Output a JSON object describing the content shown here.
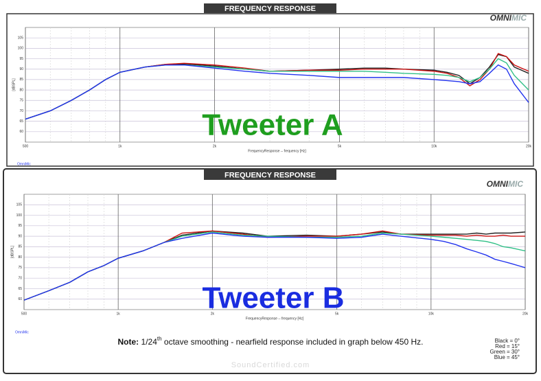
{
  "chart_data": [
    {
      "type": "line",
      "title": "FREQUENCY RESPONSE",
      "brand": {
        "main": "OMNI",
        "accent": "MIC"
      },
      "annotation": "Tweeter A",
      "annotation_color": "#1f9e1f",
      "source": "OmniMic",
      "x_label": "FrequencyResponse -- frequency [Hz]",
      "y_label": "[dBSPL]",
      "log_x": true,
      "grid": true,
      "xlim": [
        500,
        20000
      ],
      "ylim": [
        55,
        110
      ],
      "xticks": [
        500,
        {
          "value": 1000,
          "label": "1k"
        },
        {
          "value": 2000,
          "label": "2k"
        },
        {
          "value": 5000,
          "label": "5k"
        },
        {
          "value": 10000,
          "label": "10k"
        },
        {
          "value": 20000,
          "label": "20k"
        }
      ],
      "yticks": [
        60,
        65,
        70,
        75,
        80,
        85,
        90,
        95,
        100,
        105
      ],
      "x": [
        500,
        600,
        700,
        800,
        900,
        1000,
        1200,
        1400,
        1600,
        2000,
        2500,
        3000,
        4000,
        5000,
        6000,
        7000,
        8000,
        10000,
        11000,
        12000,
        13000,
        14000,
        15000,
        16000,
        17000,
        18000,
        20000
      ],
      "series": [
        {
          "color": "#222222",
          "values": [
            66,
            70,
            75,
            80,
            85,
            88.5,
            91,
            92.3,
            92.5,
            91.5,
            90,
            89,
            89.5,
            90,
            90.5,
            90.5,
            90,
            89.5,
            88.5,
            87,
            83,
            86,
            91,
            97,
            96,
            91,
            88
          ]
        },
        {
          "color": "#cc1111",
          "values": [
            66,
            70,
            75,
            80,
            85,
            88.5,
            91,
            92.3,
            92.8,
            92,
            90.5,
            89,
            89.5,
            89.5,
            90,
            90,
            90,
            89,
            88,
            86,
            82,
            85,
            90,
            97.5,
            96,
            92,
            89
          ]
        },
        {
          "color": "#2fbf86",
          "values": [
            66,
            70,
            75,
            80,
            85,
            88.5,
            91,
            92,
            92,
            91,
            90,
            89,
            89,
            89,
            89,
            88.5,
            88,
            87.5,
            87,
            86,
            84,
            86,
            90,
            95,
            93,
            87,
            80
          ]
        },
        {
          "color": "#2233ee",
          "values": [
            66,
            70,
            75,
            80,
            85,
            88.5,
            91,
            92,
            92,
            90.5,
            89,
            88,
            87,
            86,
            86,
            86,
            86,
            85,
            84.5,
            84,
            83,
            84,
            88,
            92,
            90,
            83,
            74
          ]
        }
      ]
    },
    {
      "type": "line",
      "title": "FREQUENCY RESPONSE",
      "brand": {
        "main": "OMNI",
        "accent": "MIC"
      },
      "annotation": "Tweeter B",
      "annotation_color": "#1a2de0",
      "source": "OmniMic",
      "x_label": "FrequencyResponse -- frequency [Hz]",
      "y_label": "[dBSPL]",
      "log_x": true,
      "grid": true,
      "xlim": [
        500,
        20000
      ],
      "ylim": [
        55,
        110
      ],
      "xticks": [
        500,
        {
          "value": 1000,
          "label": "1k"
        },
        {
          "value": 2000,
          "label": "2k"
        },
        {
          "value": 5000,
          "label": "5k"
        },
        {
          "value": 10000,
          "label": "10k"
        },
        {
          "value": 20000,
          "label": "20k"
        }
      ],
      "yticks": [
        60,
        65,
        70,
        75,
        80,
        85,
        90,
        95,
        100,
        105
      ],
      "x": [
        500,
        600,
        700,
        800,
        900,
        1000,
        1200,
        1400,
        1600,
        2000,
        2500,
        3000,
        4000,
        5000,
        6000,
        7000,
        8000,
        10000,
        11000,
        12000,
        13000,
        14000,
        15000,
        16000,
        17000,
        18000,
        20000
      ],
      "series": [
        {
          "name": "Black = 0°",
          "color": "#222222",
          "values": [
            59.5,
            64,
            68,
            73,
            76,
            79.5,
            83,
            87,
            90.5,
            92.5,
            91.5,
            90,
            90.5,
            90,
            91,
            92,
            91,
            91,
            91,
            91,
            91,
            91.5,
            91,
            91.5,
            91.5,
            91.5,
            92
          ]
        },
        {
          "name": "Red = 15°",
          "color": "#cc1111",
          "values": [
            59.5,
            64,
            68,
            73,
            76,
            79.5,
            83,
            87,
            91.5,
            92.5,
            91,
            89.5,
            90,
            90,
            91,
            92.5,
            91,
            90.5,
            90.5,
            90.5,
            90,
            90.5,
            90,
            90,
            90.5,
            90,
            90
          ]
        },
        {
          "name": "Green = 30°",
          "color": "#2fbf86",
          "values": [
            59.5,
            64,
            68,
            73,
            76,
            79.5,
            83,
            87,
            90,
            92,
            90.5,
            90,
            89.5,
            89.5,
            90,
            91.5,
            91,
            90,
            89.5,
            89,
            88.5,
            88,
            87.5,
            86.5,
            85,
            84.5,
            83
          ]
        },
        {
          "name": "Blue = 45°",
          "color": "#2233ee",
          "values": [
            59.5,
            64,
            68,
            73,
            76,
            79.5,
            83,
            87,
            89,
            91.5,
            90,
            89.5,
            89.5,
            89,
            89.5,
            91,
            90,
            88.5,
            87.5,
            86,
            84,
            82.5,
            81,
            79,
            78,
            77,
            75
          ]
        }
      ]
    }
  ],
  "note": {
    "label": "Note:",
    "text_before": "1/24",
    "superscript": "th",
    "text_after": "octave smoothing - nearfield response included in graph below 450 Hz."
  },
  "watermark": "SoundCertified.com"
}
